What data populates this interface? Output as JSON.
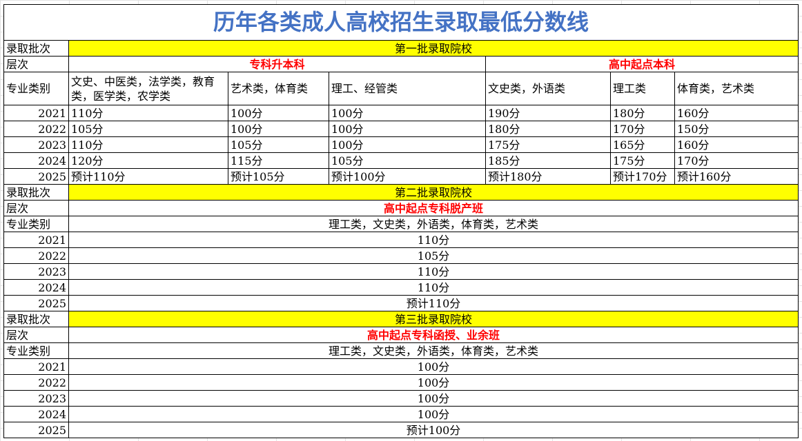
{
  "title": "历年各类成人高校招生录取最低分数线",
  "labels": {
    "batch": "录取批次",
    "level": "层次",
    "major": "专业类别"
  },
  "batch1": {
    "name": "第一批录取院校",
    "levels": [
      "专科升本科",
      "高中起点本科"
    ],
    "categories": [
      "文史、中医类，法学类，教育类，医学类，农学类",
      "艺术类，体育类",
      "理工、经管类",
      "文史类，外语类",
      "理工类",
      "体育类，艺术类"
    ],
    "rows": [
      {
        "year": "2021",
        "scores": [
          "110分",
          "100分",
          "100分",
          "190分",
          "180分",
          "160分"
        ]
      },
      {
        "year": "2022",
        "scores": [
          "105分",
          "100分",
          "100分",
          "180分",
          "170分",
          "150分"
        ]
      },
      {
        "year": "2023",
        "scores": [
          "110分",
          "105分",
          "100分",
          "175分",
          "165分",
          "160分"
        ]
      },
      {
        "year": "2024",
        "scores": [
          "120分",
          "115分",
          "105分",
          "185分",
          "175分",
          "170分"
        ]
      },
      {
        "year": "2025",
        "scores": [
          "预计110分",
          "预计105分",
          "预计100分",
          "预计180分",
          "预计170分",
          "预计160分"
        ]
      }
    ]
  },
  "batch2": {
    "name": "第二批录取院校",
    "level": "高中起点专科脱产班",
    "category": "理工类，文史类，外语类，体育类，艺术类",
    "rows": [
      {
        "year": "2021",
        "score": "110分"
      },
      {
        "year": "2022",
        "score": "105分"
      },
      {
        "year": "2023",
        "score": "110分"
      },
      {
        "year": "2024",
        "score": "110分"
      },
      {
        "year": "2025",
        "score": "预计110分"
      }
    ]
  },
  "batch3": {
    "name": "第三批录取院校",
    "level": "高中起点专科函授、业余班",
    "category": "理工类，文史类，外语类，体育类，艺术类",
    "rows": [
      {
        "year": "2021",
        "score": "100分"
      },
      {
        "year": "2022",
        "score": "100分"
      },
      {
        "year": "2023",
        "score": "100分"
      },
      {
        "year": "2024",
        "score": "100分"
      },
      {
        "year": "2025",
        "score": "预计100分"
      }
    ]
  },
  "colors": {
    "title": "#4472c4",
    "highlight": "#ffff00",
    "level_text": "#ff0000"
  }
}
